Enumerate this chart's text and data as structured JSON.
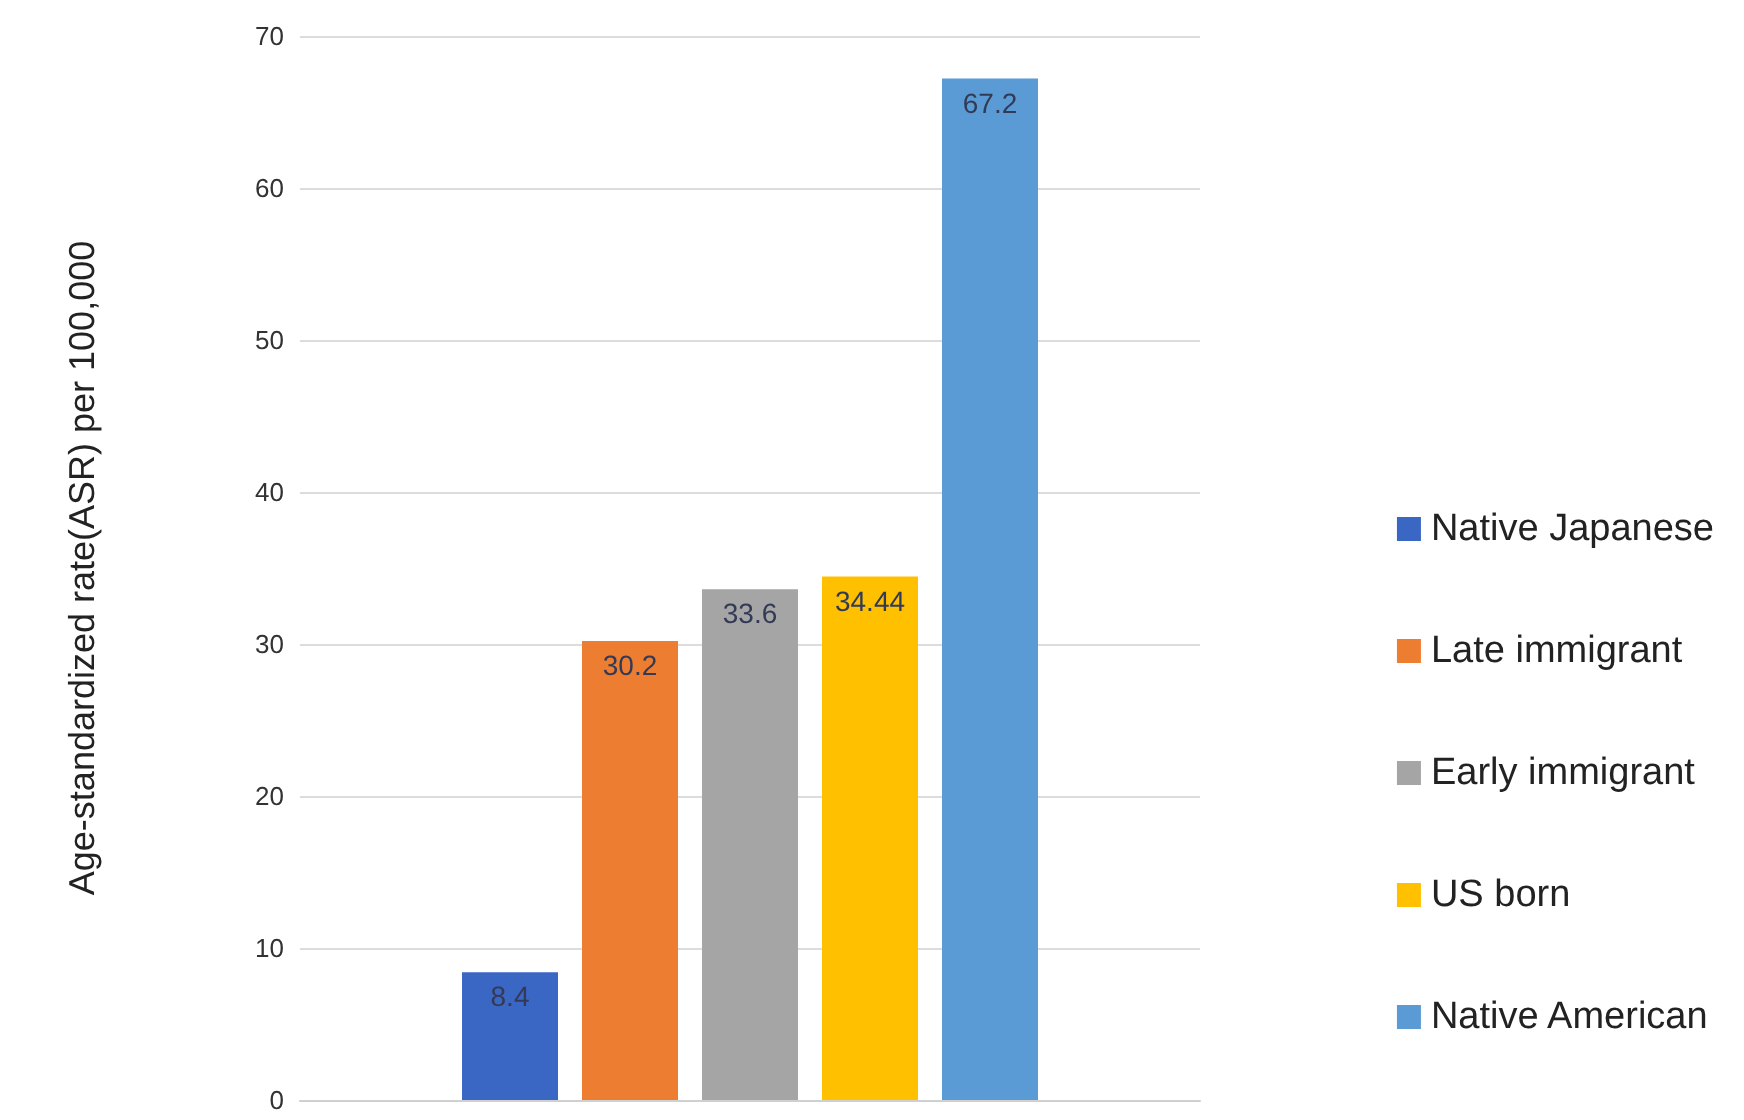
{
  "chart_data": {
    "type": "bar",
    "ylabel": "Age-standardized rate(ASR) per 100,000",
    "categories": [
      null
    ],
    "series": [
      {
        "name": "Native Japanese",
        "color": "#3a66c4",
        "values": [
          8.4
        ]
      },
      {
        "name": "Late immigrant",
        "color": "#ed7d31",
        "values": [
          30.2
        ]
      },
      {
        "name": "Early immigrant",
        "color": "#a5a5a5",
        "values": [
          33.6
        ]
      },
      {
        "name": "US born",
        "color": "#ffc000",
        "values": [
          34.44
        ]
      },
      {
        "name": "Native American",
        "color": "#5b9bd5",
        "values": [
          67.2
        ]
      }
    ],
    "ylim": [
      0,
      70
    ],
    "yticks": [
      0,
      10,
      20,
      30,
      40,
      50,
      60,
      70
    ],
    "grid": "y",
    "legend": "right",
    "data_labels": true
  }
}
